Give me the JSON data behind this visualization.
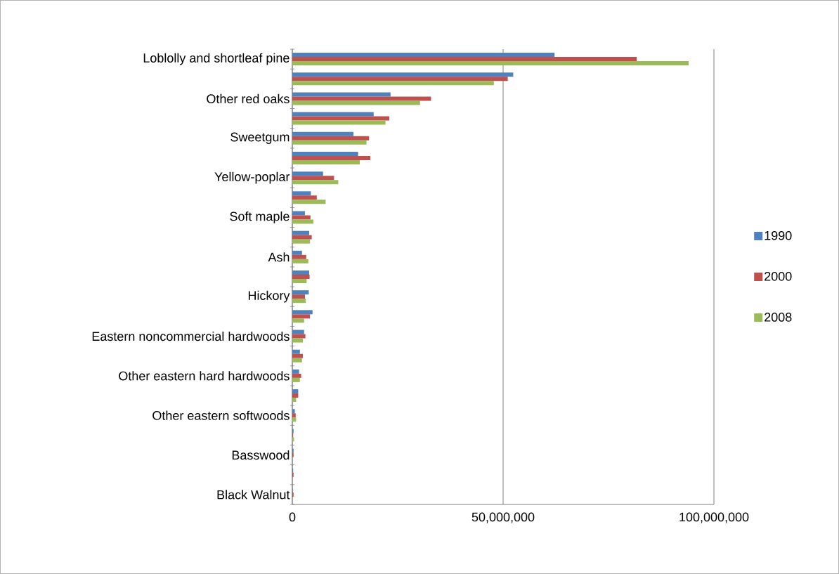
{
  "chart_data": {
    "type": "bar",
    "orientation": "horizontal",
    "categories": [
      "Loblolly and shortleaf pine",
      null,
      "Other red oaks",
      null,
      "Sweetgum",
      null,
      "Yellow-poplar",
      null,
      "Soft maple",
      null,
      "Ash",
      null,
      "Hickory",
      null,
      "Eastern noncommercial hardwoods",
      null,
      "Other eastern hard hardwoods",
      null,
      "Other eastern softwoods",
      null,
      "Basswood",
      null,
      "Black Walnut"
    ],
    "series": [
      {
        "name": "1990",
        "color": "#4f81bd",
        "values": [
          62200000,
          52400000,
          23300000,
          19300000,
          14500000,
          15600000,
          7300000,
          4400000,
          3000000,
          4000000,
          2300000,
          4000000,
          3900000,
          4800000,
          2800000,
          1800000,
          1600000,
          1400000,
          600000,
          300000,
          300000,
          200000,
          100000
        ]
      },
      {
        "name": "2000",
        "color": "#c0504d",
        "values": [
          81700000,
          51100000,
          32900000,
          23000000,
          18200000,
          18500000,
          9900000,
          5800000,
          4300000,
          4600000,
          3300000,
          4100000,
          3000000,
          4200000,
          3100000,
          2500000,
          2100000,
          1400000,
          800000,
          200000,
          300000,
          300000,
          300000
        ]
      },
      {
        "name": "2008",
        "color": "#9bbb59",
        "values": [
          94000000,
          47800000,
          30300000,
          22100000,
          17600000,
          16000000,
          10900000,
          7900000,
          5000000,
          4200000,
          3800000,
          3400000,
          3200000,
          2800000,
          2500000,
          2300000,
          1800000,
          900000,
          900000,
          400000,
          null,
          null,
          null
        ]
      }
    ],
    "xlim": [
      0,
      100000000
    ],
    "xticks": [
      {
        "value": 0,
        "label": "0"
      },
      {
        "value": 50000000,
        "label": "50,000,000"
      },
      {
        "value": 100000000,
        "label": "100,000,000"
      }
    ],
    "grid": "x",
    "legend": "right"
  }
}
